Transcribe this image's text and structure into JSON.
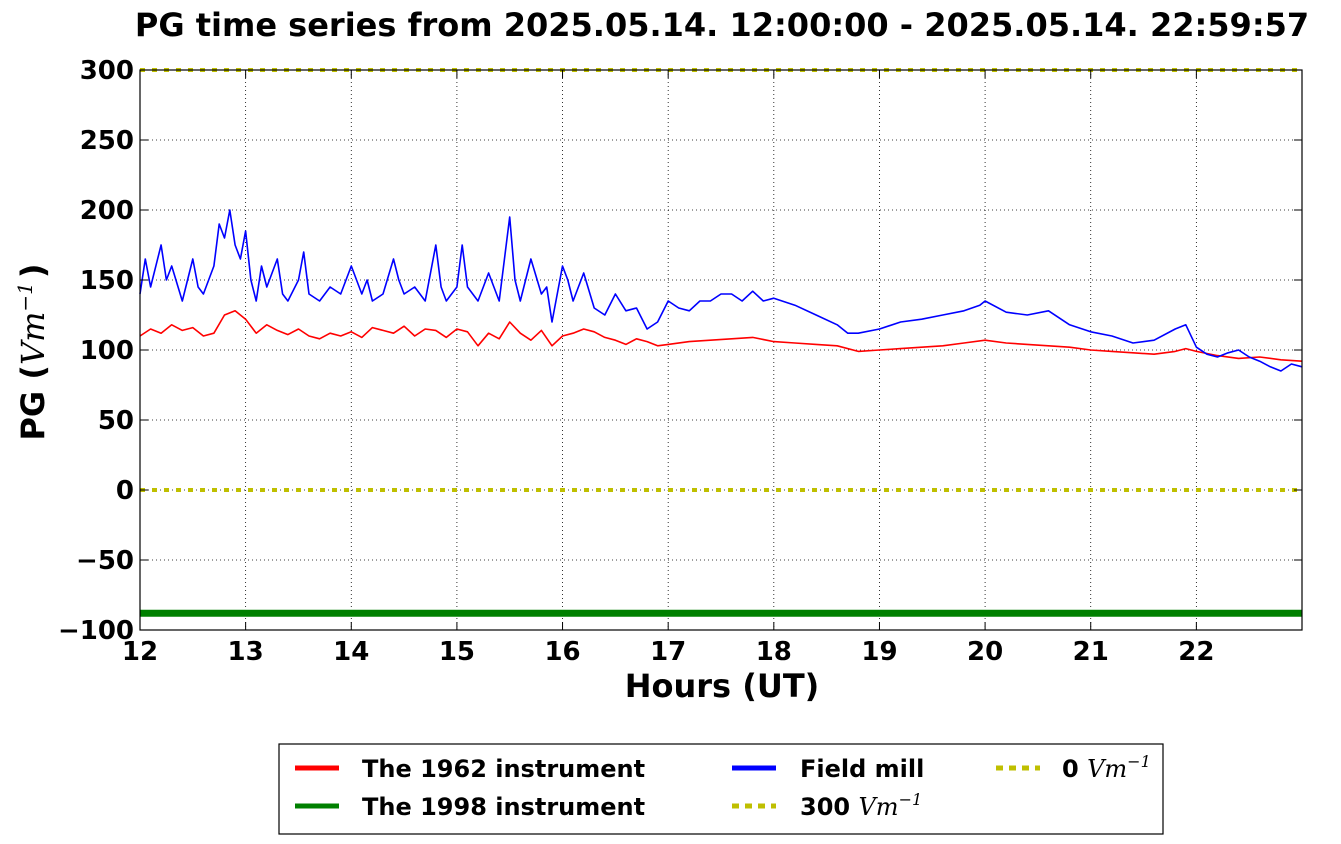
{
  "chart_data": {
    "type": "line",
    "title": "PG time series from 2025.05.14. 12:00:00 - 2025.05.14. 22:59:57",
    "xlabel": "Hours (UT)",
    "ylabel_prefix": "PG (",
    "ylabel_unit": "Vm",
    "ylabel_exp": "−1",
    "ylabel_suffix": ")",
    "xlim": [
      12,
      23
    ],
    "ylim": [
      -100,
      300
    ],
    "xticks": [
      12,
      13,
      14,
      15,
      16,
      17,
      18,
      19,
      20,
      21,
      22
    ],
    "xtick_labels": [
      "12",
      "13",
      "14",
      "15",
      "16",
      "17",
      "18",
      "19",
      "20",
      "21",
      "22"
    ],
    "yticks": [
      -100,
      -50,
      0,
      50,
      100,
      150,
      200,
      250,
      300
    ],
    "ytick_labels": [
      "−100",
      "−50",
      "0",
      "50",
      "100",
      "150",
      "200",
      "250",
      "300"
    ],
    "grid": true,
    "legend_position": "below",
    "series": [
      {
        "name": "The 1962 instrument",
        "color": "#ff0000",
        "style": "solid",
        "x": [
          12.0,
          12.1,
          12.2,
          12.3,
          12.4,
          12.5,
          12.6,
          12.7,
          12.8,
          12.9,
          13.0,
          13.1,
          13.2,
          13.3,
          13.4,
          13.5,
          13.6,
          13.7,
          13.8,
          13.9,
          14.0,
          14.1,
          14.2,
          14.3,
          14.4,
          14.5,
          14.6,
          14.7,
          14.8,
          14.9,
          15.0,
          15.1,
          15.2,
          15.3,
          15.4,
          15.5,
          15.6,
          15.7,
          15.8,
          15.9,
          16.0,
          16.1,
          16.2,
          16.3,
          16.4,
          16.5,
          16.6,
          16.7,
          16.8,
          16.9,
          17.0,
          17.2,
          17.4,
          17.6,
          17.8,
          18.0,
          18.2,
          18.4,
          18.6,
          18.8,
          19.0,
          19.2,
          19.4,
          19.6,
          19.8,
          20.0,
          20.2,
          20.4,
          20.6,
          20.8,
          21.0,
          21.2,
          21.4,
          21.6,
          21.8,
          21.9,
          22.0,
          22.2,
          22.4,
          22.6,
          22.8,
          23.0
        ],
        "y": [
          110,
          115,
          112,
          118,
          114,
          116,
          110,
          112,
          125,
          128,
          122,
          112,
          118,
          114,
          111,
          115,
          110,
          108,
          112,
          110,
          113,
          109,
          116,
          114,
          112,
          117,
          110,
          115,
          114,
          109,
          115,
          113,
          103,
          112,
          108,
          120,
          112,
          107,
          114,
          103,
          110,
          112,
          115,
          113,
          109,
          107,
          104,
          108,
          106,
          103,
          104,
          106,
          107,
          108,
          109,
          106,
          105,
          104,
          103,
          99,
          100,
          101,
          102,
          103,
          105,
          107,
          105,
          104,
          103,
          102,
          100,
          99,
          98,
          97,
          99,
          101,
          99,
          96,
          94,
          95,
          93,
          92
        ]
      },
      {
        "name": "The 1998 instrument",
        "color": "#008000",
        "style": "solid",
        "x": [
          12,
          23
        ],
        "y": [
          -88,
          -88
        ]
      },
      {
        "name": "Field mill",
        "color": "#0000ff",
        "style": "solid",
        "x": [
          12.0,
          12.05,
          12.1,
          12.2,
          12.25,
          12.3,
          12.4,
          12.5,
          12.55,
          12.6,
          12.7,
          12.75,
          12.8,
          12.85,
          12.9,
          12.95,
          13.0,
          13.05,
          13.1,
          13.15,
          13.2,
          13.3,
          13.35,
          13.4,
          13.5,
          13.55,
          13.6,
          13.7,
          13.8,
          13.9,
          14.0,
          14.1,
          14.15,
          14.2,
          14.3,
          14.4,
          14.45,
          14.5,
          14.6,
          14.7,
          14.8,
          14.85,
          14.9,
          15.0,
          15.05,
          15.1,
          15.2,
          15.3,
          15.4,
          15.5,
          15.55,
          15.6,
          15.7,
          15.8,
          15.85,
          15.9,
          16.0,
          16.05,
          16.1,
          16.2,
          16.3,
          16.4,
          16.5,
          16.6,
          16.7,
          16.8,
          16.9,
          17.0,
          17.1,
          17.2,
          17.3,
          17.4,
          17.5,
          17.6,
          17.7,
          17.8,
          17.9,
          18.0,
          18.2,
          18.4,
          18.6,
          18.7,
          18.8,
          19.0,
          19.2,
          19.4,
          19.6,
          19.8,
          19.95,
          20.0,
          20.2,
          20.4,
          20.6,
          20.8,
          21.0,
          21.2,
          21.4,
          21.6,
          21.8,
          21.9,
          22.0,
          22.1,
          22.2,
          22.3,
          22.4,
          22.5,
          22.6,
          22.7,
          22.8,
          22.9,
          23.0
        ],
        "y": [
          140,
          165,
          145,
          175,
          150,
          160,
          135,
          165,
          145,
          140,
          160,
          190,
          180,
          200,
          175,
          165,
          185,
          150,
          135,
          160,
          145,
          165,
          140,
          135,
          150,
          170,
          140,
          135,
          145,
          140,
          160,
          140,
          150,
          135,
          140,
          165,
          150,
          140,
          145,
          135,
          175,
          145,
          135,
          145,
          175,
          145,
          135,
          155,
          135,
          195,
          150,
          135,
          165,
          140,
          145,
          120,
          160,
          150,
          135,
          155,
          130,
          125,
          140,
          128,
          130,
          115,
          120,
          135,
          130,
          128,
          135,
          135,
          140,
          140,
          135,
          142,
          135,
          137,
          132,
          125,
          118,
          112,
          112,
          115,
          120,
          122,
          125,
          128,
          132,
          135,
          127,
          125,
          128,
          118,
          113,
          110,
          105,
          107,
          115,
          118,
          102,
          97,
          95,
          98,
          100,
          95,
          92,
          88,
          85,
          90,
          88
        ]
      },
      {
        "name": "300 Vm⁻¹",
        "name_number": "300",
        "name_unit": "Vm",
        "name_exp": "−1",
        "color": "#bfbf00",
        "style": "dotted",
        "x": [
          12,
          23
        ],
        "y": [
          300,
          300
        ]
      },
      {
        "name": "0 Vm⁻¹",
        "name_number": "0",
        "name_unit": "Vm",
        "name_exp": "−1",
        "color": "#bfbf00",
        "style": "dotted",
        "x": [
          12,
          23
        ],
        "y": [
          0,
          0
        ]
      }
    ]
  }
}
